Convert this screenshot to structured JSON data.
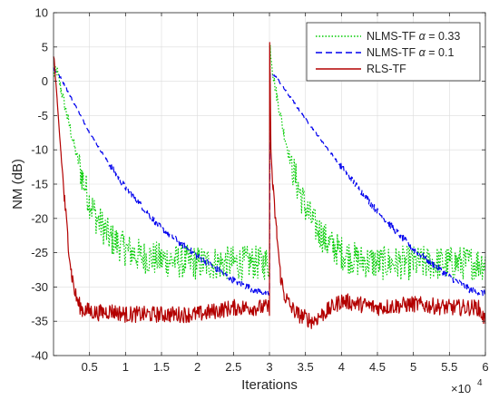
{
  "chart_data": {
    "type": "line",
    "title": "",
    "xlabel": "Iterations",
    "ylabel": "NM (dB)",
    "x_multiplier_label": "×10",
    "x_multiplier_exponent": "4",
    "xlim": [
      0,
      6
    ],
    "ylim": [
      -40,
      10
    ],
    "x_ticks": [
      0.5,
      1,
      1.5,
      2,
      2.5,
      3,
      3.5,
      4,
      4.5,
      5,
      5.5,
      6
    ],
    "x_tick_labels": [
      "0.5",
      "1",
      "1.5",
      "2",
      "2.5",
      "3",
      "3.5",
      "4",
      "4.5",
      "5",
      "5.5",
      "6"
    ],
    "y_ticks": [
      -40,
      -35,
      -30,
      -25,
      -20,
      -15,
      -10,
      -5,
      0,
      5,
      10
    ],
    "y_tick_labels": [
      "-40",
      "-35",
      "-30",
      "-25",
      "-20",
      "-15",
      "-10",
      "-5",
      "0",
      "5",
      "10"
    ],
    "grid": true,
    "legend_position": "top-right",
    "legend_prefix": "NLMS-TF",
    "alpha_symbol": "α",
    "series": [
      {
        "name": "NLMS-TF α = 0.33",
        "legend_param": "= 0.33",
        "color": "#00cc00",
        "line_style": "dotted",
        "noise_band": 2.5,
        "x": [
          0,
          0.05,
          0.1,
          0.2,
          0.3,
          0.4,
          0.5,
          0.6,
          0.7,
          0.8,
          1.0,
          1.2,
          1.5,
          2.0,
          2.5,
          3.0,
          3.01,
          3.05,
          3.1,
          3.2,
          3.3,
          3.4,
          3.5,
          3.6,
          3.7,
          3.8,
          4.0,
          4.2,
          4.5,
          5.0,
          5.5,
          6.0
        ],
        "y": [
          1,
          1.5,
          -1,
          -5.5,
          -10,
          -14,
          -17.5,
          -20,
          -21.5,
          -23,
          -24.5,
          -25.5,
          -26,
          -26.5,
          -26.5,
          -26.5,
          5,
          1,
          -2,
          -7.5,
          -12,
          -15.5,
          -18.5,
          -20.5,
          -22,
          -23.5,
          -25,
          -26,
          -26.5,
          -26.5,
          -26.5,
          -26.5
        ]
      },
      {
        "name": "NLMS-TF α = 0.1",
        "legend_param": "= 0.1",
        "color": "#0000ee",
        "line_style": "dashed",
        "noise_band": 0.5,
        "x": [
          0,
          0.02,
          0.1,
          0.2,
          0.3,
          0.5,
          0.8,
          1.0,
          1.5,
          2.0,
          2.5,
          2.8,
          3.0,
          3.01,
          3.05,
          3.1,
          3.2,
          3.5,
          4.0,
          4.5,
          5.0,
          5.5,
          5.8,
          6.0
        ],
        "y": [
          2,
          1.5,
          0.5,
          -1.5,
          -3.5,
          -7.5,
          -12.5,
          -15.5,
          -21.5,
          -25.5,
          -29,
          -30.5,
          -31,
          1,
          1,
          0.5,
          -1,
          -5.5,
          -12.5,
          -19,
          -24.5,
          -28.5,
          -30.5,
          -31
        ]
      },
      {
        "name": "RLS-TF",
        "legend_label": "RLS-TF",
        "color": "#b30000",
        "line_style": "solid",
        "noise_band": 1.2,
        "x": [
          0,
          0.01,
          0.05,
          0.1,
          0.15,
          0.2,
          0.25,
          0.3,
          0.35,
          0.4,
          0.5,
          0.6,
          0.8,
          1.0,
          1.5,
          2.0,
          2.5,
          3.0,
          3.003,
          3.02,
          3.05,
          3.1,
          3.15,
          3.2,
          3.3,
          3.4,
          3.6,
          3.8,
          4.0,
          4.5,
          5.0,
          5.5,
          5.9,
          6.0
        ],
        "y": [
          4,
          3,
          -3,
          -10,
          -17,
          -23,
          -28,
          -31,
          -32.5,
          -33.3,
          -33.5,
          -33.8,
          -33.5,
          -34,
          -34,
          -34,
          -33,
          -33,
          6,
          -10,
          -16,
          -22,
          -28,
          -31,
          -33,
          -34,
          -35,
          -33.5,
          -32,
          -33,
          -32.5,
          -33,
          -33,
          -35
        ]
      }
    ]
  }
}
